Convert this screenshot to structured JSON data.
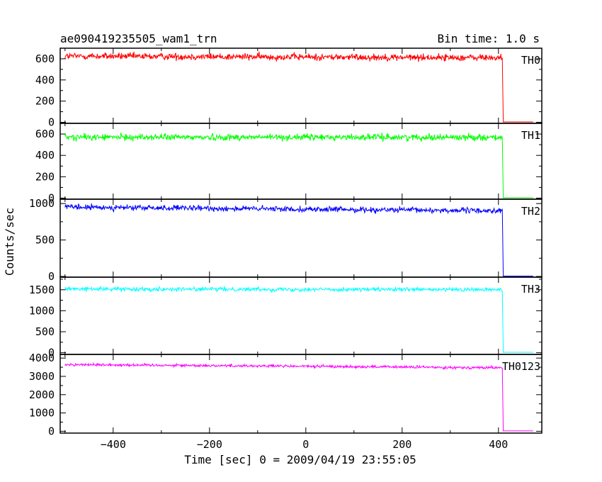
{
  "chart_data": {
    "type": "line",
    "title": "ae090419235505_wam1_trn",
    "bin_time": "Bin time: 1.0 s",
    "xlabel": "Time [sec] 0 = 2009/04/19 23:55:05",
    "ylabel": "Counts/sec",
    "xlim": [
      -510,
      490
    ],
    "x_ticks": [
      -400,
      -200,
      0,
      200,
      400
    ],
    "x_start": -500,
    "x_drop": 408,
    "x_end": 472,
    "grid": false,
    "panels": [
      {
        "name": "TH0",
        "color": "#ff0000",
        "ylim": [
          -10,
          700
        ],
        "y_ticks": [
          0,
          200,
          400,
          600
        ],
        "level_start": 625,
        "level_end": 610,
        "noise": 30,
        "post_drop": 3
      },
      {
        "name": "TH1",
        "color": "#00ff00",
        "ylim": [
          -10,
          700
        ],
        "y_ticks": [
          0,
          200,
          400,
          600
        ],
        "level_start": 570,
        "level_end": 570,
        "noise": 28,
        "post_drop": 3
      },
      {
        "name": "TH2",
        "color": "#0000ff",
        "ylim": [
          -10,
          1060
        ],
        "y_ticks": [
          0,
          500,
          1000
        ],
        "level_start": 950,
        "level_end": 900,
        "noise": 35,
        "post_drop": 5
      },
      {
        "name": "TH3",
        "color": "#00ffff",
        "ylim": [
          -40,
          1800
        ],
        "y_ticks": [
          0,
          500,
          1000,
          1500
        ],
        "level_start": 1520,
        "level_end": 1500,
        "noise": 45,
        "post_drop": 10
      },
      {
        "name": "TH0123",
        "color": "#ff00ff",
        "ylim": [
          -100,
          4200
        ],
        "y_ticks": [
          0,
          1000,
          2000,
          3000,
          4000
        ],
        "level_start": 3650,
        "level_end": 3470,
        "noise": 70,
        "post_drop": 20
      }
    ]
  }
}
